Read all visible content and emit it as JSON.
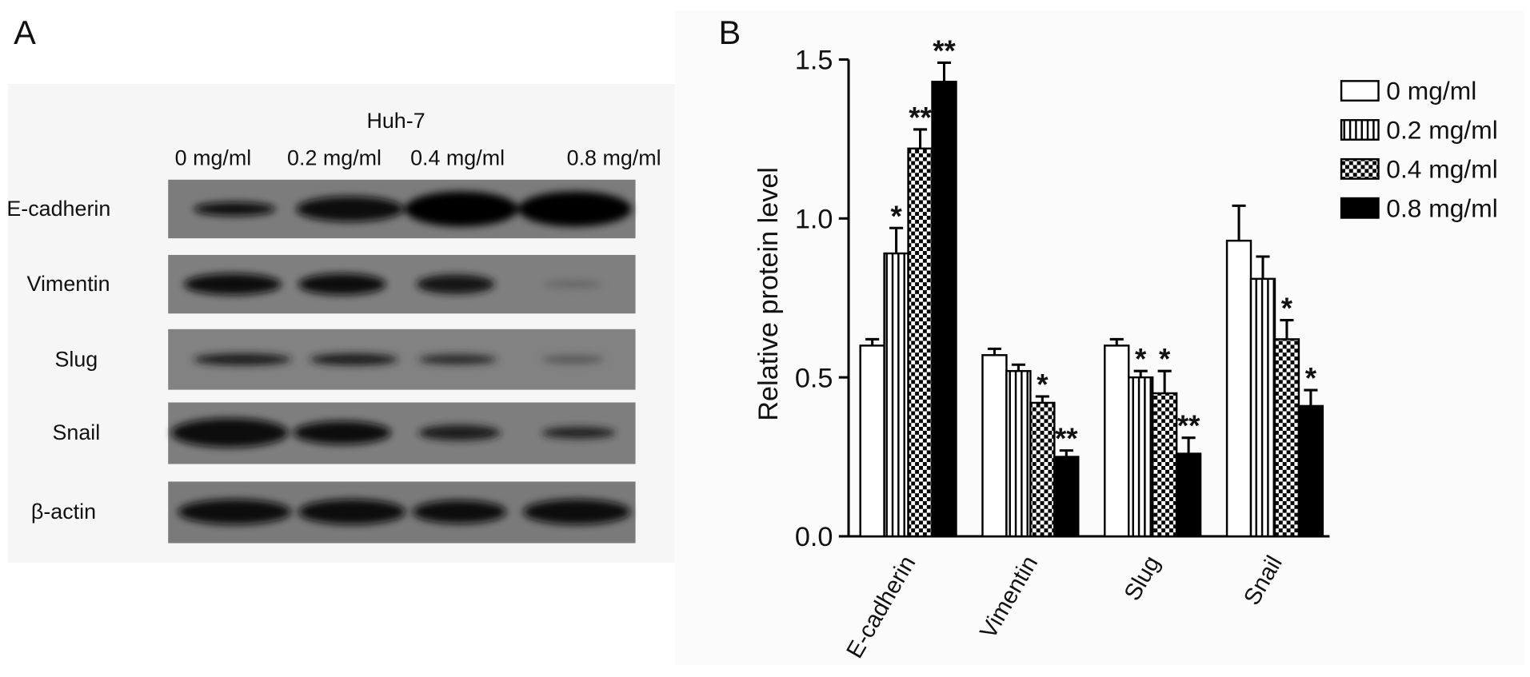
{
  "panel_labels": [
    "A",
    "B"
  ],
  "blot": {
    "cell_line": "Huh-7",
    "lanes": [
      "0 mg/ml",
      "0.2 mg/ml",
      "0.4 mg/ml",
      "0.8 mg/ml"
    ],
    "proteins": [
      "E-cadherin",
      "Vimentin",
      "Slug",
      "Snail",
      "β-actin"
    ]
  },
  "chart_data": {
    "type": "bar",
    "y_label": "Relative protein level",
    "categories": [
      "E-cadherin",
      "Vimentin",
      "Slug",
      "Snail"
    ],
    "ylim": [
      0,
      1.5
    ],
    "yticks": [
      {
        "value": 0,
        "label": "0.0"
      },
      0.5,
      {
        "value": 1,
        "label": "1.0"
      },
      1.5
    ],
    "legend": "upper right",
    "series": [
      {
        "name": "0 mg/ml",
        "color": "#ffffff",
        "pattern": "solid",
        "values": [
          0.6,
          0.57,
          0.6,
          0.93
        ],
        "errors": [
          0.02,
          0.02,
          0.02,
          0.11
        ],
        "annotations": [
          null,
          null,
          null,
          null
        ]
      },
      {
        "name": "0.2 mg/ml",
        "color": "#ffffff",
        "pattern": "vertical-lines",
        "values": [
          0.89,
          0.52,
          0.5,
          0.81
        ],
        "errors": [
          0.08,
          0.02,
          0.02,
          0.07
        ],
        "annotations": [
          "*",
          null,
          "*",
          null
        ]
      },
      {
        "name": "0.4 mg/ml",
        "color": "#ffffff",
        "pattern": "checker",
        "values": [
          1.22,
          0.42,
          0.45,
          0.62
        ],
        "errors": [
          0.06,
          0.02,
          0.07,
          0.06
        ],
        "annotations": [
          "**",
          "*",
          "*",
          "*"
        ]
      },
      {
        "name": "0.8 mg/ml",
        "color": "#000000",
        "pattern": "solid",
        "values": [
          1.43,
          0.25,
          0.26,
          0.41
        ],
        "errors": [
          0.06,
          0.02,
          0.05,
          0.05
        ],
        "annotations": [
          "**",
          "**",
          "**",
          "*"
        ]
      }
    ]
  }
}
